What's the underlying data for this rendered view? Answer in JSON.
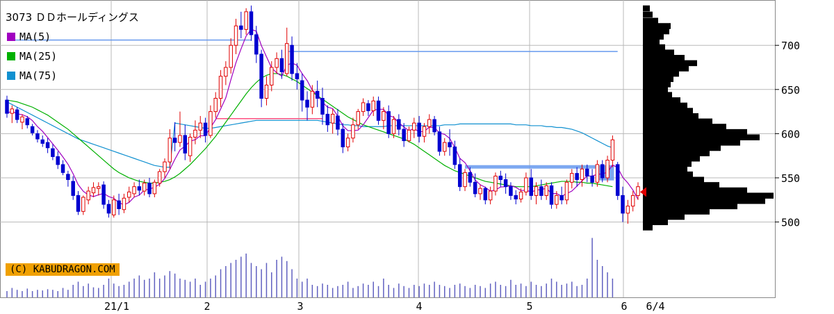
{
  "title": "3073 ＤＤホールディングス",
  "copyright": "(C) KABUDRAGON.COM",
  "colors": {
    "ma5": "#a000c0",
    "ma25": "#00b000",
    "ma75": "#1090d0",
    "up": "#e00000",
    "down": "#0000d0",
    "grid": "#b8b8b8",
    "hline": "#6699ee",
    "pink": "#ff5080"
  },
  "legend": [
    {
      "label": "MA(5)",
      "color": "#a000c0"
    },
    {
      "label": "MA(25)",
      "color": "#00b000"
    },
    {
      "label": "MA(75)",
      "color": "#1090d0"
    }
  ],
  "chart_data": {
    "type": "candlestick",
    "title": "3073 ＤＤホールディングス",
    "ylim": [
      480,
      745
    ],
    "y_ticks": [
      500,
      550,
      600,
      650,
      700
    ],
    "x_tick_labels": [
      "21/1",
      "2",
      "3",
      "4",
      "5",
      "6",
      "6/4"
    ],
    "grid": true,
    "candles": [
      [
        638,
        643,
        618,
        623
      ],
      [
        623,
        632,
        612,
        628
      ],
      [
        627,
        630,
        612,
        616
      ],
      [
        613,
        622,
        605,
        619
      ],
      [
        617,
        620,
        606,
        610
      ],
      [
        608,
        611,
        598,
        601
      ],
      [
        600,
        604,
        590,
        594
      ],
      [
        593,
        598,
        585,
        589
      ],
      [
        590,
        595,
        578,
        584
      ],
      [
        583,
        588,
        570,
        574
      ],
      [
        574,
        580,
        560,
        565
      ],
      [
        565,
        570,
        553,
        556
      ],
      [
        554,
        558,
        540,
        548
      ],
      [
        546,
        552,
        525,
        530
      ],
      [
        530,
        535,
        508,
        512
      ],
      [
        512,
        530,
        508,
        528
      ],
      [
        525,
        540,
        520,
        535
      ],
      [
        533,
        545,
        528,
        539
      ],
      [
        538,
        545,
        530,
        540
      ],
      [
        542,
        546,
        515,
        520
      ],
      [
        520,
        525,
        505,
        510
      ],
      [
        508,
        530,
        505,
        525
      ],
      [
        524,
        532,
        508,
        515
      ],
      [
        514,
        532,
        510,
        527
      ],
      [
        528,
        540,
        522,
        534
      ],
      [
        532,
        545,
        528,
        540
      ],
      [
        540,
        548,
        530,
        536
      ],
      [
        535,
        548,
        530,
        544
      ],
      [
        544,
        550,
        528,
        532
      ],
      [
        532,
        548,
        528,
        545
      ],
      [
        544,
        560,
        540,
        557
      ],
      [
        557,
        572,
        550,
        568
      ],
      [
        568,
        605,
        560,
        595
      ],
      [
        595,
        613,
        580,
        590
      ],
      [
        590,
        625,
        585,
        598
      ],
      [
        598,
        610,
        570,
        578
      ],
      [
        575,
        600,
        568,
        596
      ],
      [
        596,
        615,
        588,
        604
      ],
      [
        604,
        620,
        595,
        612
      ],
      [
        612,
        618,
        590,
        598
      ],
      [
        598,
        632,
        595,
        625
      ],
      [
        625,
        647,
        618,
        640
      ],
      [
        640,
        672,
        630,
        665
      ],
      [
        665,
        682,
        655,
        675
      ],
      [
        675,
        708,
        668,
        700
      ],
      [
        700,
        730,
        690,
        722
      ],
      [
        722,
        738,
        708,
        718
      ],
      [
        718,
        742,
        712,
        738
      ],
      [
        738,
        745,
        705,
        712
      ],
      [
        712,
        722,
        680,
        690
      ],
      [
        690,
        695,
        630,
        640
      ],
      [
        640,
        665,
        632,
        655
      ],
      [
        655,
        682,
        648,
        675
      ],
      [
        675,
        692,
        668,
        685
      ],
      [
        685,
        695,
        662,
        670
      ],
      [
        668,
        720,
        665,
        702
      ],
      [
        700,
        710,
        660,
        668
      ],
      [
        668,
        680,
        650,
        662
      ],
      [
        660,
        668,
        625,
        638
      ],
      [
        638,
        648,
        615,
        630
      ],
      [
        630,
        655,
        622,
        648
      ],
      [
        648,
        660,
        630,
        640
      ],
      [
        640,
        652,
        610,
        622
      ],
      [
        622,
        632,
        602,
        610
      ],
      [
        612,
        628,
        600,
        622
      ],
      [
        620,
        628,
        598,
        605
      ],
      [
        605,
        612,
        578,
        585
      ],
      [
        585,
        600,
        580,
        595
      ],
      [
        595,
        618,
        590,
        610
      ],
      [
        610,
        628,
        605,
        625
      ],
      [
        625,
        640,
        620,
        635
      ],
      [
        634,
        638,
        620,
        626
      ],
      [
        626,
        642,
        620,
        637
      ],
      [
        637,
        642,
        610,
        615
      ],
      [
        615,
        630,
        605,
        625
      ],
      [
        625,
        632,
        595,
        600
      ],
      [
        600,
        620,
        595,
        616
      ],
      [
        616,
        622,
        598,
        605
      ],
      [
        605,
        612,
        585,
        592
      ],
      [
        592,
        608,
        590,
        604
      ],
      [
        604,
        618,
        595,
        612
      ],
      [
        612,
        620,
        590,
        597
      ],
      [
        597,
        612,
        590,
        608
      ],
      [
        608,
        622,
        600,
        616
      ],
      [
        616,
        620,
        598,
        602
      ],
      [
        602,
        608,
        575,
        580
      ],
      [
        580,
        595,
        575,
        590
      ],
      [
        590,
        605,
        575,
        585
      ],
      [
        585,
        592,
        560,
        565
      ],
      [
        565,
        572,
        535,
        540
      ],
      [
        540,
        560,
        535,
        556
      ],
      [
        556,
        562,
        540,
        545
      ],
      [
        545,
        555,
        528,
        532
      ],
      [
        532,
        542,
        525,
        538
      ],
      [
        538,
        540,
        520,
        525
      ],
      [
        525,
        540,
        520,
        535
      ],
      [
        535,
        556,
        530,
        552
      ],
      [
        552,
        558,
        540,
        548
      ],
      [
        548,
        555,
        532,
        540
      ],
      [
        540,
        545,
        525,
        530
      ],
      [
        530,
        536,
        520,
        526
      ],
      [
        526,
        538,
        522,
        534
      ],
      [
        534,
        556,
        530,
        550
      ],
      [
        550,
        560,
        525,
        530
      ],
      [
        530,
        545,
        520,
        540
      ],
      [
        540,
        548,
        525,
        530
      ],
      [
        530,
        545,
        525,
        541
      ],
      [
        541,
        545,
        515,
        520
      ],
      [
        520,
        535,
        515,
        530
      ],
      [
        530,
        540,
        520,
        525
      ],
      [
        525,
        548,
        520,
        545
      ],
      [
        545,
        560,
        538,
        555
      ],
      [
        555,
        562,
        540,
        548
      ],
      [
        548,
        565,
        540,
        560
      ],
      [
        560,
        565,
        545,
        552
      ],
      [
        552,
        560,
        540,
        545
      ],
      [
        545,
        570,
        540,
        565
      ],
      [
        565,
        570,
        545,
        550
      ],
      [
        550,
        575,
        545,
        570
      ],
      [
        570,
        598,
        562,
        593
      ],
      [
        565,
        568,
        525,
        530
      ],
      [
        530,
        540,
        500,
        510
      ],
      [
        510,
        525,
        498,
        518
      ],
      [
        518,
        535,
        512,
        530
      ],
      [
        530,
        545,
        525,
        540
      ]
    ],
    "ma75": [
      636,
      633,
      630,
      627,
      624,
      621,
      618,
      615,
      612,
      609,
      606,
      603,
      600,
      597,
      594,
      592,
      590,
      588,
      586,
      584,
      582,
      580,
      578,
      576,
      574,
      572,
      570,
      568,
      566,
      564,
      563,
      562,
      562,
      612,
      611,
      610,
      609,
      608,
      607,
      606,
      606,
      607,
      608,
      609,
      610,
      611,
      612,
      613,
      614,
      615,
      615,
      615,
      615,
      615,
      615,
      615,
      615,
      615,
      615,
      615,
      615,
      615,
      614,
      613,
      612,
      611,
      610,
      610,
      609,
      609,
      608,
      608,
      608,
      608,
      608,
      609,
      609,
      609,
      609,
      609,
      609,
      609,
      609,
      609,
      609,
      609,
      610,
      610,
      610,
      611,
      611,
      611,
      611,
      611,
      611,
      611,
      611,
      611,
      611,
      611,
      610,
      610,
      610,
      609,
      609,
      609,
      608,
      608,
      607,
      607,
      606,
      605,
      603,
      601,
      598,
      595,
      592,
      589,
      586,
      584
    ],
    "ma25": [
      638,
      637,
      636,
      634,
      632,
      630,
      627,
      624,
      621,
      617,
      613,
      609,
      605,
      600,
      595,
      590,
      585,
      580,
      575,
      570,
      565,
      560,
      556,
      553,
      550,
      548,
      546,
      545,
      544,
      544,
      545,
      546,
      548,
      551,
      555,
      560,
      565,
      571,
      577,
      583,
      590,
      597,
      605,
      613,
      621,
      629,
      637,
      645,
      652,
      658,
      663,
      666,
      668,
      668,
      667,
      665,
      662,
      659,
      655,
      651,
      647,
      643,
      639,
      635,
      631,
      627,
      623,
      619,
      616,
      613,
      610,
      608,
      606,
      604,
      602,
      600,
      598,
      596,
      594,
      591,
      588,
      584,
      580,
      576,
      572,
      568,
      564,
      561,
      558,
      556,
      554,
      552,
      550,
      548,
      546,
      545,
      544,
      543,
      542,
      541,
      540,
      540,
      540,
      540,
      541,
      542,
      543,
      544,
      545,
      546,
      546,
      546,
      545,
      545,
      544,
      544,
      543,
      542,
      541,
      540
    ],
    "hlines": [
      {
        "y": 706,
        "from": 0,
        "to": 48,
        "type": "blue"
      },
      {
        "y": 693,
        "from": 55,
        "to": 120,
        "type": "blue"
      },
      {
        "y": 617,
        "from": 41,
        "to": 62,
        "type": "pink"
      },
      {
        "y": 562,
        "from": 90,
        "to": 116,
        "type": "blue"
      }
    ],
    "volume": [
      0.1,
      0.15,
      0.12,
      0.1,
      0.14,
      0.1,
      0.12,
      0.11,
      0.13,
      0.12,
      0.1,
      0.15,
      0.12,
      0.2,
      0.25,
      0.18,
      0.22,
      0.16,
      0.15,
      0.2,
      0.3,
      0.22,
      0.18,
      0.2,
      0.25,
      0.3,
      0.35,
      0.28,
      0.3,
      0.4,
      0.3,
      0.35,
      0.42,
      0.38,
      0.3,
      0.28,
      0.25,
      0.3,
      0.2,
      0.25,
      0.3,
      0.35,
      0.45,
      0.5,
      0.55,
      0.6,
      0.65,
      0.7,
      0.55,
      0.5,
      0.45,
      0.55,
      0.4,
      0.6,
      0.65,
      0.58,
      0.45,
      0.3,
      0.25,
      0.3,
      0.2,
      0.18,
      0.22,
      0.2,
      0.15,
      0.18,
      0.2,
      0.25,
      0.15,
      0.18,
      0.22,
      0.2,
      0.25,
      0.18,
      0.3,
      0.2,
      0.15,
      0.22,
      0.18,
      0.15,
      0.2,
      0.18,
      0.22,
      0.2,
      0.25,
      0.2,
      0.18,
      0.15,
      0.2,
      0.22,
      0.18,
      0.15,
      0.2,
      0.18,
      0.15,
      0.22,
      0.25,
      0.2,
      0.18,
      0.28,
      0.2,
      0.22,
      0.18,
      0.25,
      0.2,
      0.18,
      0.22,
      0.3,
      0.25,
      0.2,
      0.22,
      0.25,
      0.18,
      0.2,
      0.3,
      0.95,
      0.6,
      0.5,
      0.4,
      0.3
    ],
    "volume_profile": [
      {
        "price": 742,
        "w": 10
      },
      {
        "price": 735,
        "w": 14
      },
      {
        "price": 728,
        "w": 22
      },
      {
        "price": 722,
        "w": 40
      },
      {
        "price": 716,
        "w": 38
      },
      {
        "price": 710,
        "w": 30
      },
      {
        "price": 704,
        "w": 24
      },
      {
        "price": 698,
        "w": 32
      },
      {
        "price": 692,
        "w": 45
      },
      {
        "price": 686,
        "w": 60
      },
      {
        "price": 680,
        "w": 78
      },
      {
        "price": 674,
        "w": 66
      },
      {
        "price": 668,
        "w": 52
      },
      {
        "price": 662,
        "w": 44
      },
      {
        "price": 656,
        "w": 40
      },
      {
        "price": 650,
        "w": 36
      },
      {
        "price": 644,
        "w": 42
      },
      {
        "price": 638,
        "w": 54
      },
      {
        "price": 632,
        "w": 64
      },
      {
        "price": 626,
        "w": 72
      },
      {
        "price": 620,
        "w": 80
      },
      {
        "price": 614,
        "w": 100
      },
      {
        "price": 608,
        "w": 120
      },
      {
        "price": 602,
        "w": 150
      },
      {
        "price": 596,
        "w": 168
      },
      {
        "price": 590,
        "w": 140
      },
      {
        "price": 584,
        "w": 112
      },
      {
        "price": 578,
        "w": 96
      },
      {
        "price": 572,
        "w": 82
      },
      {
        "price": 566,
        "w": 70
      },
      {
        "price": 560,
        "w": 64
      },
      {
        "price": 554,
        "w": 72
      },
      {
        "price": 548,
        "w": 88
      },
      {
        "price": 542,
        "w": 110
      },
      {
        "price": 536,
        "w": 150
      },
      {
        "price": 530,
        "w": 188
      },
      {
        "price": 524,
        "w": 176
      },
      {
        "price": 518,
        "w": 136
      },
      {
        "price": 512,
        "w": 96
      },
      {
        "price": 506,
        "w": 60
      },
      {
        "price": 500,
        "w": 36
      },
      {
        "price": 494,
        "w": 14
      }
    ],
    "marker_price": 534
  }
}
